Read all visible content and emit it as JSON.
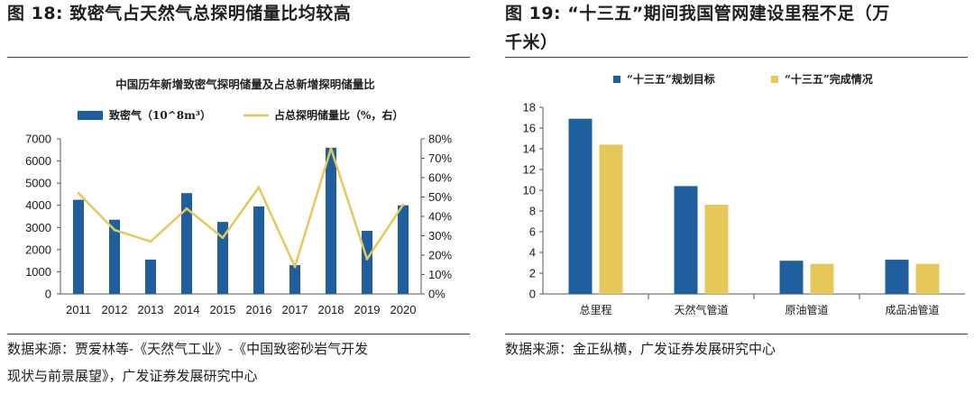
{
  "left": {
    "fig_title": "图 18:  致密气占天然气总探明储量比均较高",
    "source_line1": "数据来源：贾爱林等-《天然气工业》-《中国致密砂岩气开发",
    "source_line2": "现状与前景展望》，广发证券发展研究中心"
  },
  "right": {
    "fig_title_line1": "图 19:  “十三五”期间我国管网建设里程不足（万",
    "fig_title_line2": "千米）",
    "source_line1": "数据来源：金正纵横，广发证券发展研究中心"
  },
  "chart_data": [
    {
      "type": "bar",
      "title": "中国历年新增致密气探明储量及占总新增探明储量比",
      "categories": [
        "2011",
        "2012",
        "2013",
        "2014",
        "2015",
        "2016",
        "2017",
        "2018",
        "2019",
        "2020"
      ],
      "series": [
        {
          "name": "致密气（10^8m³）",
          "kind": "bar",
          "axis": "left",
          "color": "#1f5f9e",
          "values": [
            4250,
            3350,
            1550,
            4550,
            3250,
            3950,
            1300,
            6600,
            2850,
            4000
          ]
        },
        {
          "name": "占总探明储量比（%，右）",
          "kind": "line",
          "axis": "right",
          "color": "#e6c85a",
          "values": [
            52,
            33,
            27,
            44,
            29,
            55,
            14,
            75,
            18,
            46
          ]
        }
      ],
      "ylim": [
        0,
        7000
      ],
      "yticks": [
        "0",
        "1000",
        "2000",
        "3000",
        "4000",
        "5000",
        "6000",
        "7000"
      ],
      "y2lim": [
        0,
        80
      ],
      "y2ticks": [
        "0%",
        "10%",
        "20%",
        "30%",
        "40%",
        "50%",
        "60%",
        "70%",
        "80%"
      ],
      "legend": "top"
    },
    {
      "type": "bar",
      "title": "",
      "categories": [
        "总里程",
        "天然气管道",
        "原油管道",
        "成品油管道"
      ],
      "series": [
        {
          "name": "“十三五”规划目标",
          "color": "#1f5f9e",
          "values": [
            16.9,
            10.4,
            3.2,
            3.3
          ]
        },
        {
          "name": "“十三五”完成情况",
          "color": "#e6c85a",
          "values": [
            14.4,
            8.6,
            2.9,
            2.9
          ]
        }
      ],
      "ylim": [
        0,
        18
      ],
      "yticks": [
        "0",
        "2",
        "4",
        "6",
        "8",
        "10",
        "12",
        "14",
        "16",
        "18"
      ],
      "legend": "top"
    }
  ]
}
